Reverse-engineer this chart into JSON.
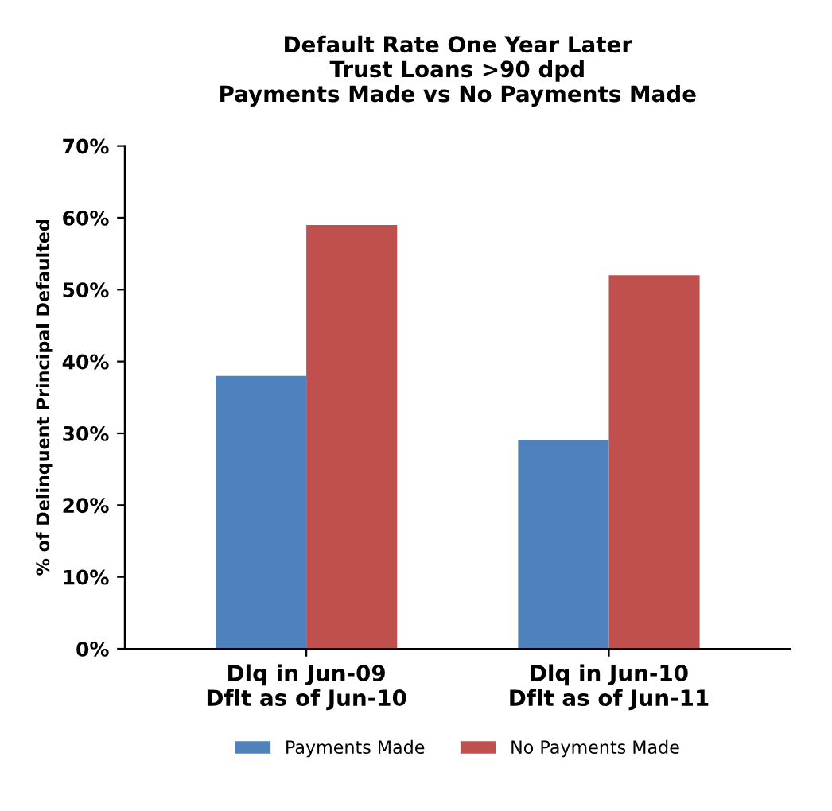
{
  "chart_data": {
    "type": "bar",
    "title": "Default Rate One Year Later\nTrust Loans >90 dpd\nPayments Made vs No Payments Made",
    "ylabel": "% of Delinquent Principal Defaulted",
    "categories": [
      "Dlq in Jun-09\nDflt as of Jun-10",
      "Dlq in Jun-10\nDflt as of Jun-11"
    ],
    "series": [
      {
        "name": "Payments Made",
        "color": "#4f81bd",
        "values": [
          38,
          29
        ]
      },
      {
        "name": "No Payments Made",
        "color": "#c0504d",
        "values": [
          59,
          52
        ]
      }
    ],
    "ylim": [
      0,
      70
    ],
    "yticks": [
      {
        "value": 0,
        "label": "0%"
      },
      {
        "value": 10,
        "label": "10%"
      },
      {
        "value": 20,
        "label": "20%"
      },
      {
        "value": 30,
        "label": "30%"
      },
      {
        "value": 40,
        "label": "40%"
      },
      {
        "value": 50,
        "label": "50%"
      },
      {
        "value": 60,
        "label": "60%"
      },
      {
        "value": 70,
        "label": "70%"
      }
    ],
    "grid": false,
    "legend": "bottom"
  }
}
